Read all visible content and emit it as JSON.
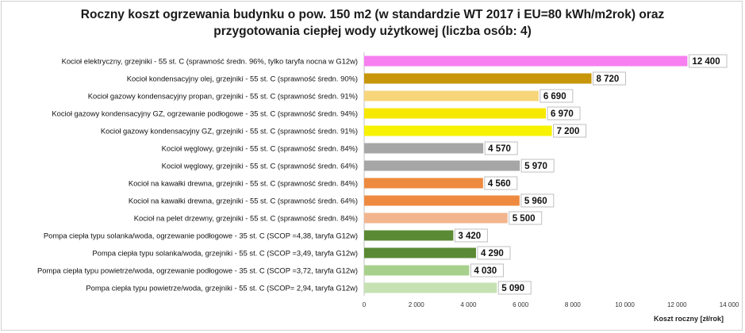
{
  "chart_data": {
    "type": "bar",
    "orientation": "horizontal",
    "title_line1": "Roczny koszt ogrzewania budynku  o pow. 150 m2 (w standardzie WT 2017 i EU=80 kWh/m2rok) oraz",
    "title_line2": "przygotowania ciepłej wody użytkowej (liczba osób: 4)",
    "xlabel": "Koszt roczny [zł/rok]",
    "xlim": [
      0,
      14000
    ],
    "xticks": [
      0,
      2000,
      4000,
      6000,
      8000,
      10000,
      12000,
      14000
    ],
    "xtick_labels": [
      "0",
      "2 000",
      "4 000",
      "6 000",
      "8 000",
      "10 000",
      "12 000",
      "14 000"
    ],
    "categories": [
      "Kocioł  elektryczny,  grzejniki - 55 st. C  (sprawność średn. 96%, tylko taryfa nocna w G12w)",
      "Kocioł  kondensacyjny olej,  grzejniki - 55 st. C (sprawność średn. 90%)",
      "Kocioł gazowy kondensacyjny propan, grzejniki - 55 st. C (sprawność średn. 91%)",
      "Kocioł gazowy kondensacyjny GZ, ogrzewanie podłogowe - 35 st. C (sprawność średn. 94%)",
      "Kocioł gazowy kondensacyjny GZ, grzejniki - 55 st. C (sprawność średn. 91%)",
      "Kocioł węglowy,  grzejniki - 55 st. C (sprawność średn. 84%)",
      "Kocioł węglowy,  grzejniki - 55 st. C (sprawność średn. 64%)",
      "Kocioł na kawałki drewna, grzejniki - 55 st. C (sprawność średn. 84%)",
      "Kocioł na kawałki drewna, grzejniki - 55 st. C (sprawność średn. 64%)",
      "Kocioł na pelet drzewny, grzejniki - 55 st. C (sprawność średn. 84%)",
      "Pompa ciepła typu solanka/woda, ogrzewanie podłogowe - 35 st. C (SCOP =4,38, taryfa G12w)",
      "Pompa ciepła typu solanka/woda, grzejniki - 55 st. C (SCOP =3,49, taryfa G12w)",
      "Pompa ciepła typu powietrze/woda, ogrzewanie podłogowe - 35 st. C (SCOP =3,72, taryfa G12w)",
      "Pompa ciepła typu powietrze/woda, grzejniki - 55 st. C (SCOP= 2,94, taryfa G12w)"
    ],
    "values": [
      12400,
      8720,
      6690,
      6970,
      7200,
      4570,
      5970,
      4560,
      5960,
      5500,
      3420,
      4290,
      4030,
      5090
    ],
    "value_labels": [
      "12 400",
      "8 720",
      "6 690",
      "6 970",
      "7 200",
      "4 570",
      "5 970",
      "4 560",
      "5 960",
      "5 500",
      "3 420",
      "4 290",
      "4 030",
      "5 090"
    ],
    "colors": [
      "#f77ff0",
      "#c8960a",
      "#f7d57a",
      "#f7e800",
      "#f7f200",
      "#a6a6a6",
      "#a6a6a6",
      "#ee8a3f",
      "#ee8a3f",
      "#f2b58e",
      "#5a8a34",
      "#5a8a34",
      "#a8d08d",
      "#c6e2b3"
    ],
    "grid": false,
    "legend": "none"
  }
}
